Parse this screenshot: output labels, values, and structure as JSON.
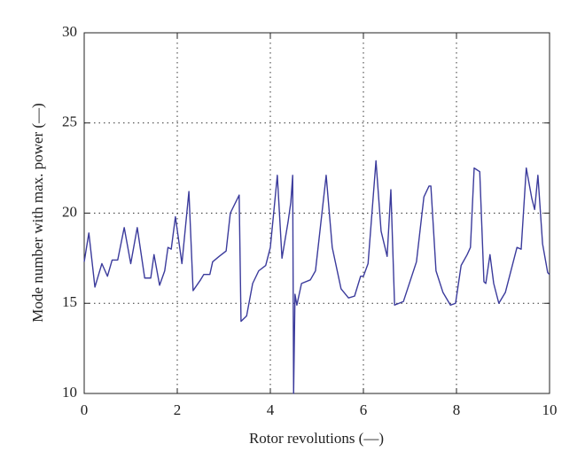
{
  "chart_data": {
    "type": "line",
    "xlabel": "Rotor revolutions (—)",
    "ylabel": "Mode number with max. power (—)",
    "xlim": [
      0,
      10
    ],
    "xticks": [
      0,
      2,
      4,
      6,
      8,
      10
    ],
    "ylim": [
      10,
      30
    ],
    "yticks": [
      10,
      15,
      20,
      25,
      30
    ],
    "grid": true,
    "series": [
      {
        "color": "#3b3b9c",
        "x": [
          0,
          0.1,
          0.23,
          0.38,
          0.5,
          0.6,
          0.72,
          0.86,
          1.0,
          1.14,
          1.3,
          1.43,
          1.5,
          1.62,
          1.73,
          1.8,
          1.87,
          1.96,
          2.1,
          2.25,
          2.34,
          2.5,
          2.57,
          2.7,
          2.76,
          2.9,
          3.05,
          3.14,
          3.33,
          3.37,
          3.49,
          3.62,
          3.75,
          3.9,
          4.0,
          4.15,
          4.25,
          4.38,
          4.44,
          4.48,
          4.5,
          4.53,
          4.57,
          4.67,
          4.86,
          4.97,
          5.2,
          5.33,
          5.52,
          5.68,
          5.81,
          5.94,
          6.0,
          6.1,
          6.27,
          6.38,
          6.51,
          6.59,
          6.67,
          6.86,
          7.0,
          7.14,
          7.3,
          7.41,
          7.45,
          7.56,
          7.71,
          7.87,
          7.98,
          8.1,
          8.23,
          8.3,
          8.38,
          8.5,
          8.59,
          8.63,
          8.72,
          8.8,
          8.91,
          9.05,
          9.2,
          9.3,
          9.39,
          9.5,
          9.62,
          9.68,
          9.75,
          9.85,
          9.96,
          10
        ],
        "values": [
          17.3,
          18.9,
          15.9,
          17.2,
          16.5,
          17.4,
          17.4,
          19.2,
          17.2,
          19.2,
          16.4,
          16.4,
          17.7,
          16.0,
          16.8,
          18.1,
          18.0,
          19.8,
          17.2,
          21.2,
          15.7,
          16.3,
          16.6,
          16.6,
          17.3,
          17.6,
          17.9,
          20.0,
          21.0,
          14.0,
          14.3,
          16.1,
          16.8,
          17.1,
          18.1,
          22.1,
          17.5,
          19.5,
          20.6,
          22.1,
          10.0,
          15.5,
          14.9,
          16.1,
          16.3,
          16.8,
          22.1,
          18.1,
          15.8,
          15.3,
          15.4,
          16.5,
          16.5,
          17.2,
          22.9,
          19.0,
          17.6,
          21.3,
          14.9,
          15.1,
          16.2,
          17.3,
          20.9,
          21.5,
          21.5,
          16.8,
          15.6,
          14.9,
          15.0,
          17.1,
          17.7,
          18.1,
          22.5,
          22.3,
          16.2,
          16.1,
          17.7,
          16.1,
          15.0,
          15.6,
          17.1,
          18.1,
          18.0,
          22.5,
          20.8,
          20.2,
          22.1,
          18.3,
          16.7,
          16.6
        ]
      }
    ]
  }
}
